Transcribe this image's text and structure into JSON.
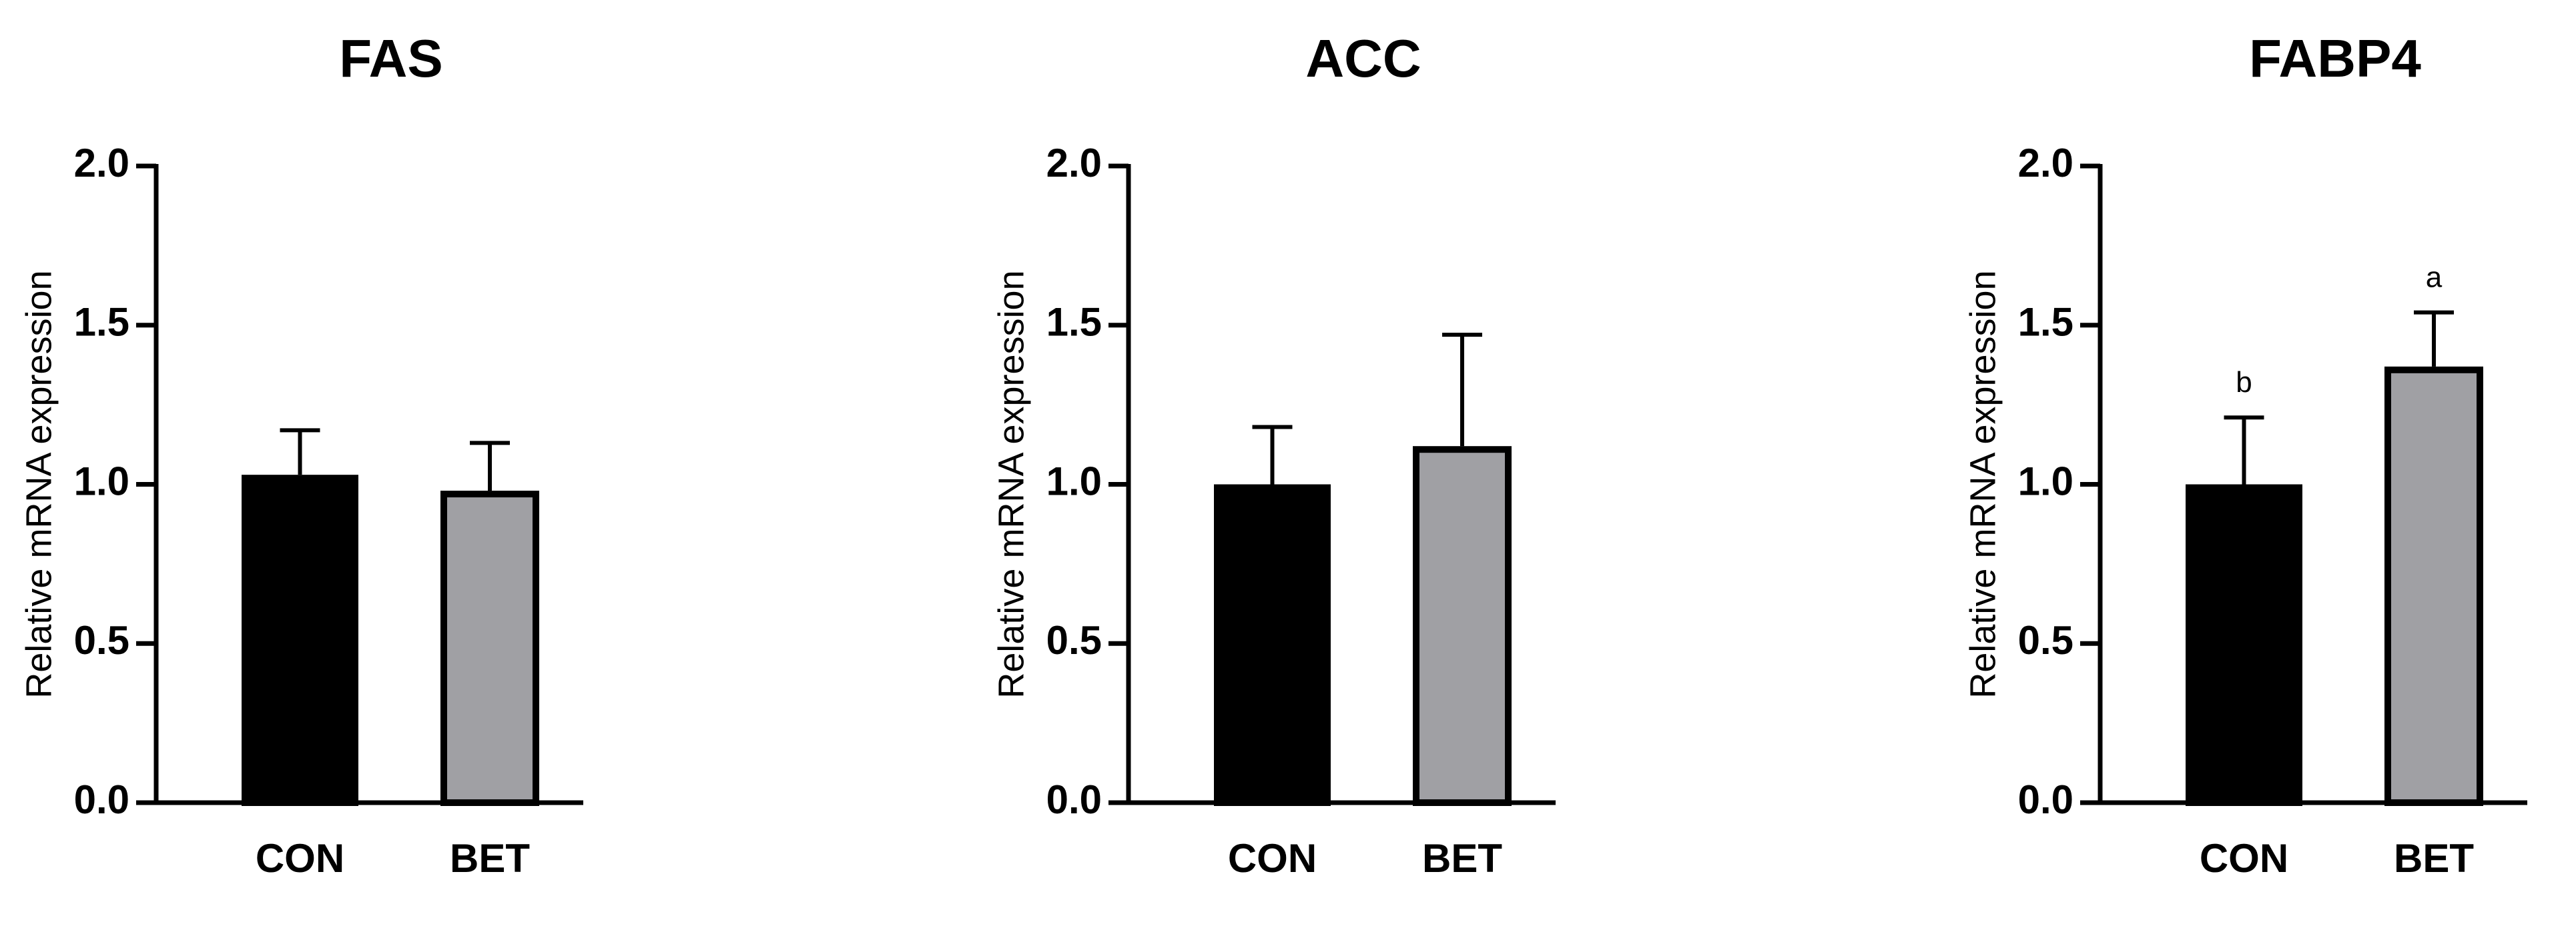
{
  "chart_data": [
    {
      "type": "bar",
      "title": "FAS",
      "y_label": "Relative mRNA expression",
      "categories": [
        "CON",
        "BET"
      ],
      "values": [
        1.03,
        0.98
      ],
      "errors": [
        0.14,
        0.15
      ],
      "colors": [
        "#000000",
        "#a0a0a4"
      ],
      "ylim": [
        0,
        2
      ],
      "yticks": [
        {
          "value": 0,
          "label": "0.0"
        },
        0.5,
        {
          "value": 1,
          "label": "1.0"
        },
        1.5,
        {
          "value": 2,
          "label": "2.0"
        }
      ]
    },
    {
      "type": "bar",
      "title": "ACC",
      "y_label": "Relative mRNA expression",
      "categories": [
        "CON",
        "BET"
      ],
      "values": [
        1.0,
        1.12
      ],
      "errors": [
        0.18,
        0.35
      ],
      "colors": [
        "#000000",
        "#a0a0a4"
      ],
      "ylim": [
        0,
        2
      ],
      "yticks": [
        {
          "value": 0,
          "label": "0.0"
        },
        0.5,
        {
          "value": 1,
          "label": "1.0"
        },
        1.5,
        {
          "value": 2,
          "label": "2.0"
        }
      ]
    },
    {
      "type": "bar",
      "title": "FABP4",
      "y_label": "Relative mRNA expression",
      "categories": [
        "CON",
        "BET"
      ],
      "values": [
        1.0,
        1.37
      ],
      "errors": [
        0.21,
        0.17
      ],
      "annotations": [
        "b",
        "a"
      ],
      "colors": [
        "#000000",
        "#a0a0a4"
      ],
      "ylim": [
        0,
        2
      ],
      "yticks": [
        {
          "value": 0,
          "label": "0.0"
        },
        0.5,
        {
          "value": 1,
          "label": "1.0"
        },
        1.5,
        {
          "value": 2,
          "label": "2.0"
        }
      ]
    }
  ]
}
